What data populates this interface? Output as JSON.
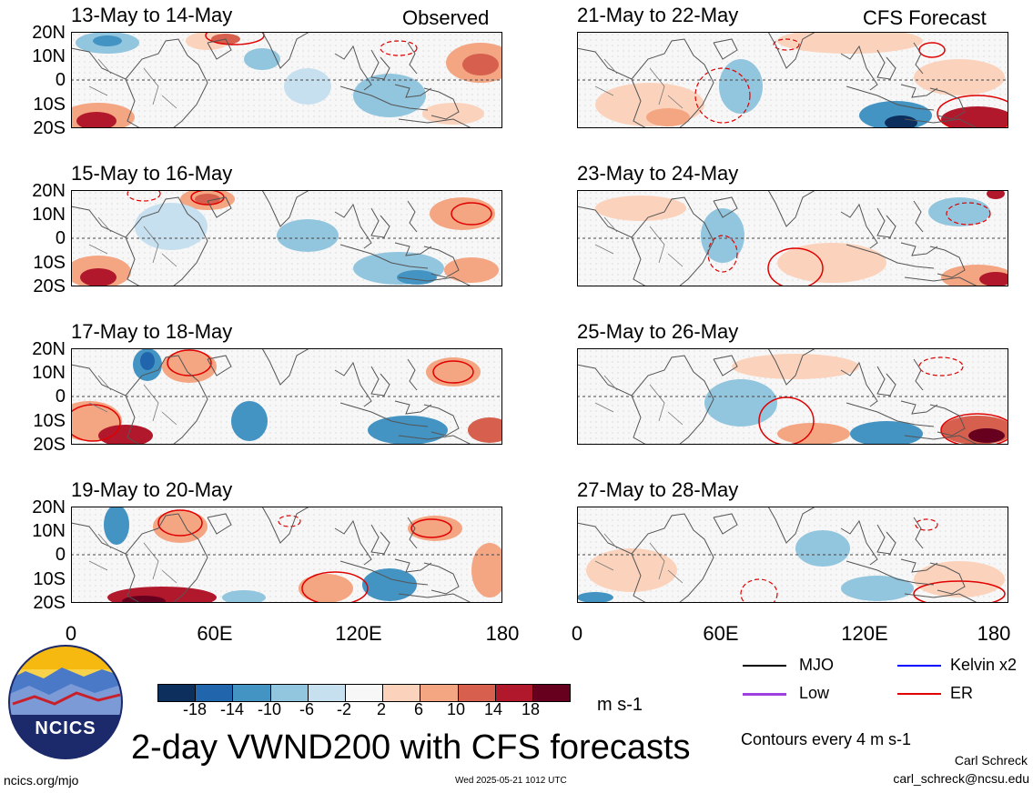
{
  "columns": {
    "observed_label": "Observed",
    "forecast_label": "CFS Forecast"
  },
  "panels": {
    "observed": [
      {
        "date": "13-May to 14-May"
      },
      {
        "date": "15-May to 16-May"
      },
      {
        "date": "17-May to 18-May"
      },
      {
        "date": "19-May to 20-May"
      }
    ],
    "forecast": [
      {
        "date": "21-May to 22-May"
      },
      {
        "date": "23-May to 24-May"
      },
      {
        "date": "25-May to 26-May"
      },
      {
        "date": "27-May to 28-May"
      }
    ]
  },
  "lat_labels": [
    "20N",
    "10N",
    "0",
    "10S",
    "20S"
  ],
  "lon_labels": [
    "0",
    "60E",
    "120E",
    "180"
  ],
  "colorbar": {
    "ticks": [
      "-18",
      "-14",
      "-10",
      "-6",
      "-2",
      "2",
      "6",
      "10",
      "14",
      "18"
    ],
    "unit": "m s-1",
    "colors": [
      "#0d2f5e",
      "#2166ac",
      "#4393c3",
      "#92c5de",
      "#c7e0ef",
      "#f7f7f7",
      "#fbd3bd",
      "#f4a582",
      "#d6604d",
      "#b2182b",
      "#67001f"
    ]
  },
  "legend": {
    "items": [
      {
        "label": "MJO",
        "color": "#000000"
      },
      {
        "label": "Kelvin x2",
        "color": "#0000ff"
      },
      {
        "label": "Low",
        "color": "#a040e0"
      },
      {
        "label": "ER",
        "color": "#e00000"
      }
    ],
    "contour_note": "Contours every 4 m s-1"
  },
  "title": "2-day VWND200 with CFS forecasts",
  "footer": {
    "left": "ncics.org/mjo",
    "center": "Wed 2025-05-21 1012 UTC",
    "author": "Carl Schreck",
    "email": "carl_schreck@ncsu.edu"
  },
  "logo": {
    "text": "NCICS"
  }
}
